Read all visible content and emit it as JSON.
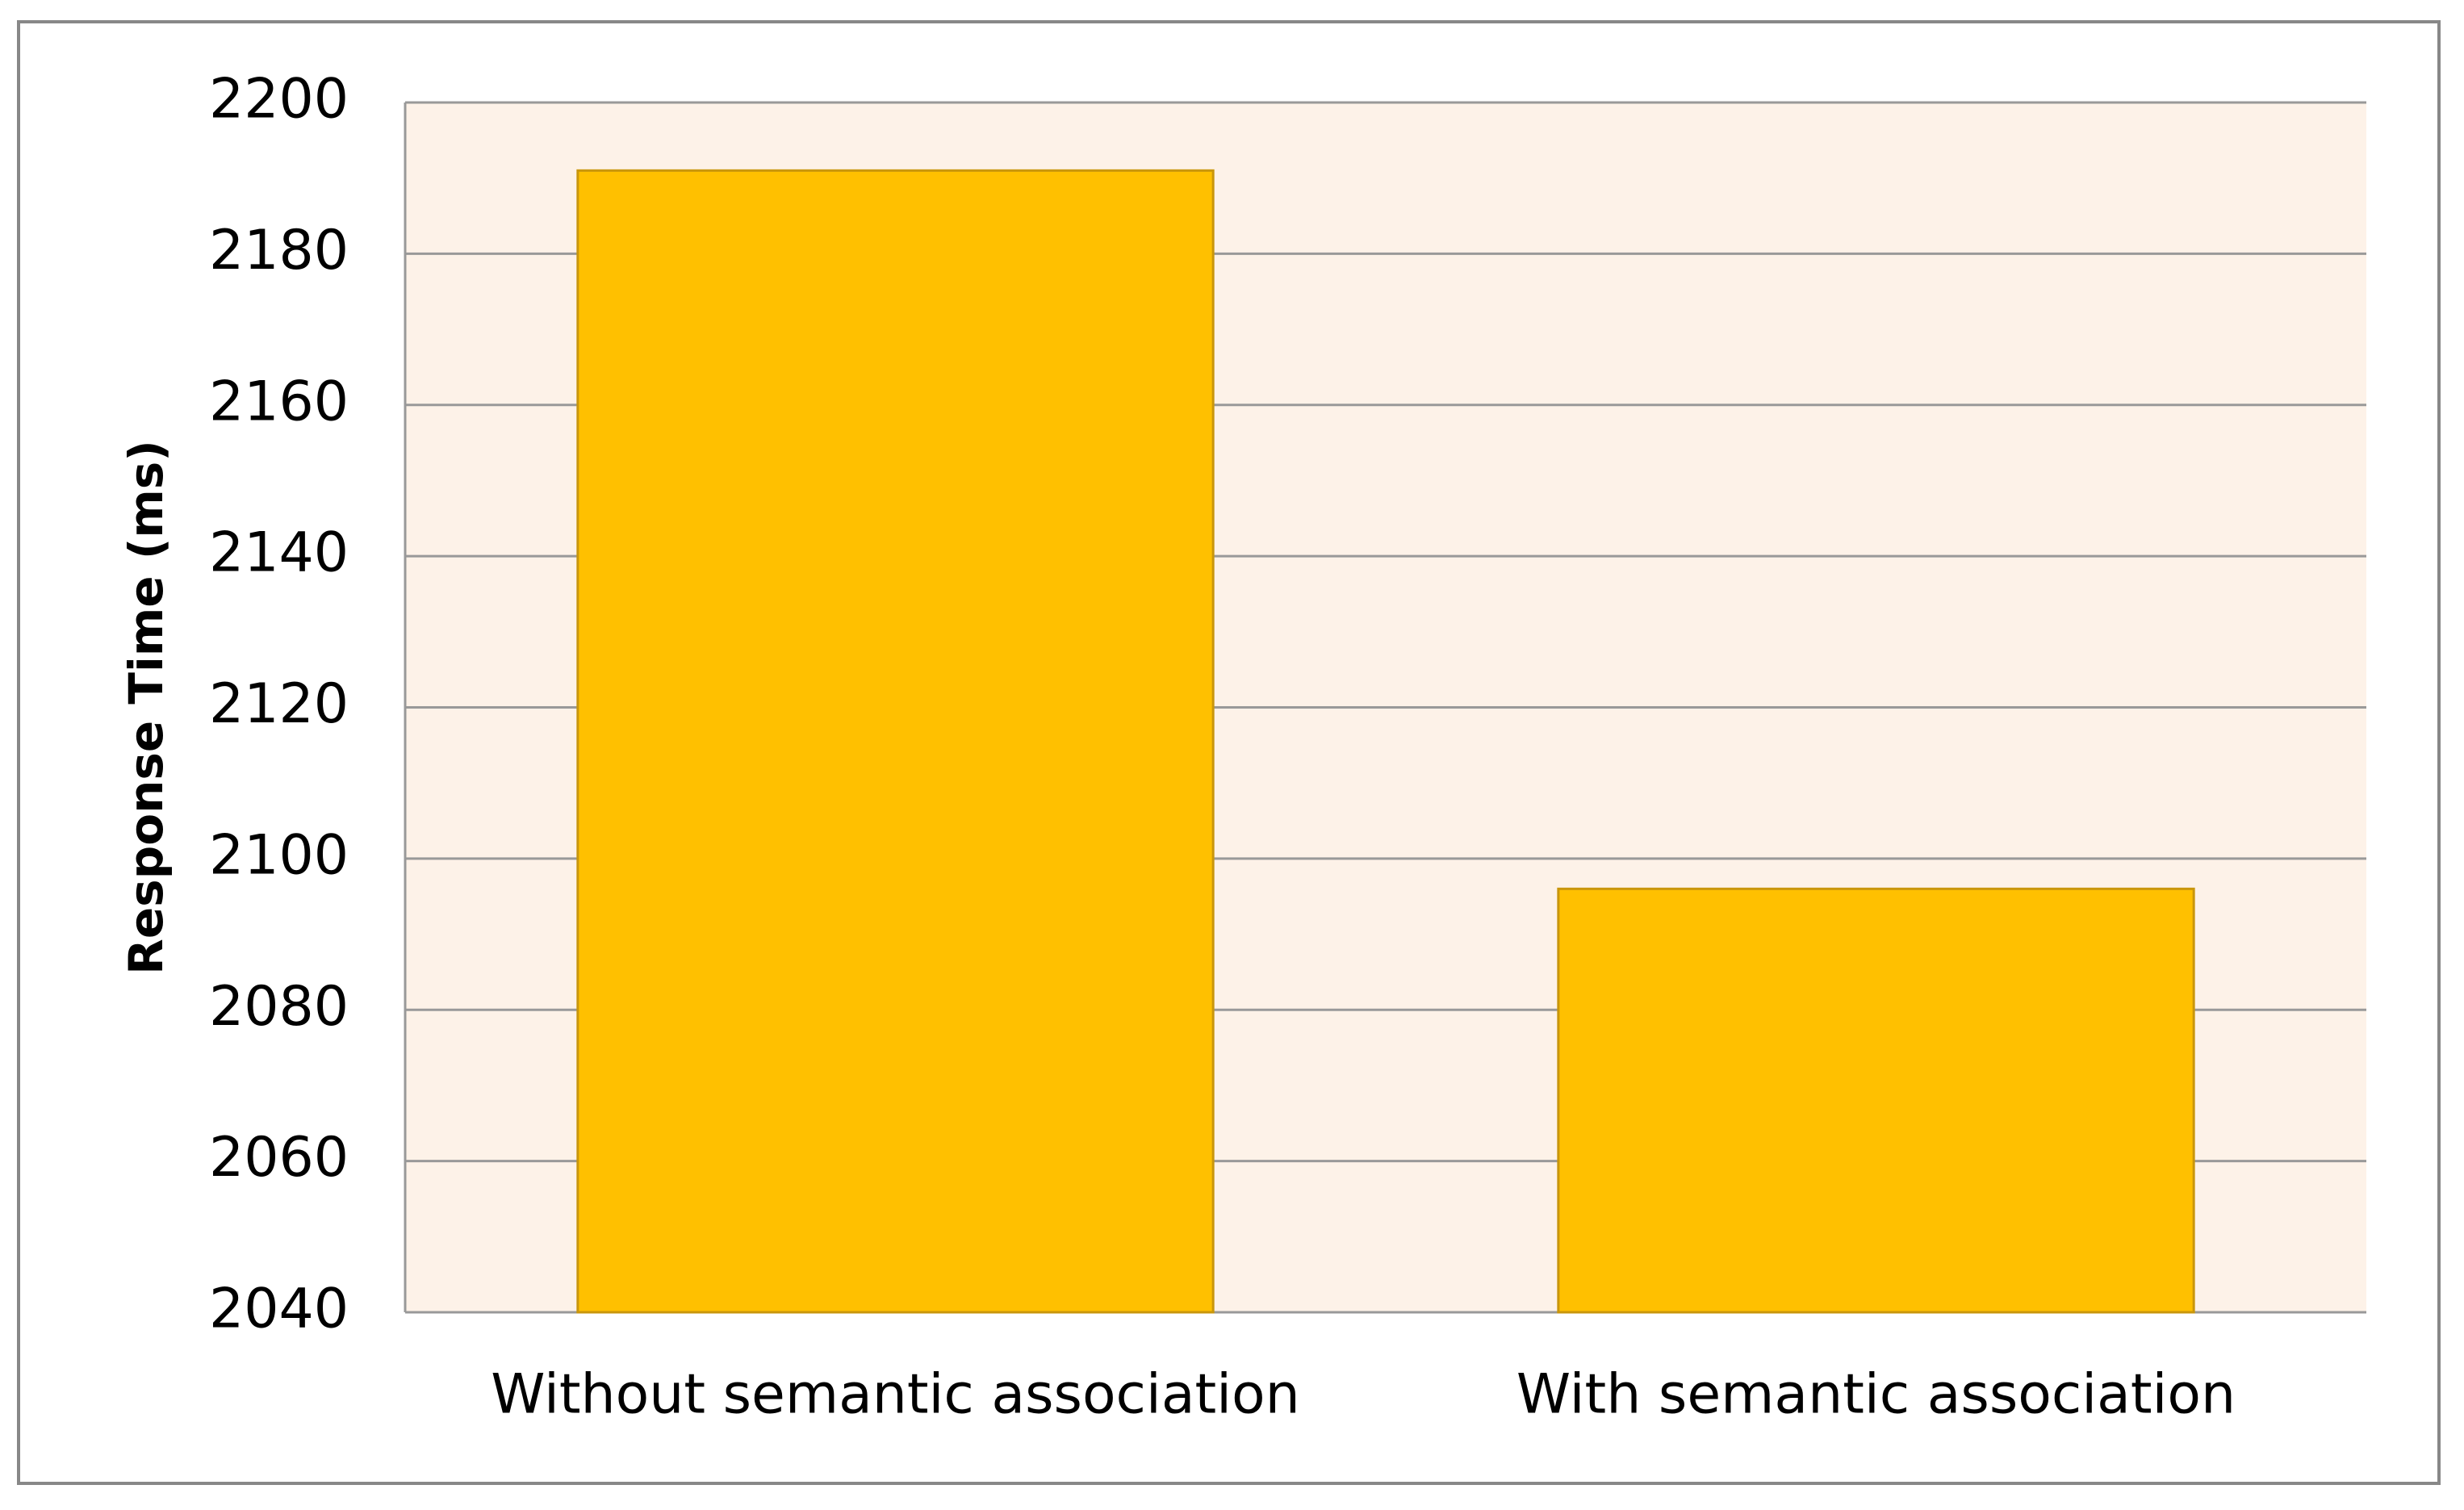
{
  "chart_data": {
    "type": "bar",
    "y_label": "Response Time (ms)",
    "categories": [
      "Without semantic association",
      "With semantic association"
    ],
    "values": [
      2191,
      2096
    ],
    "color": "#FFC000",
    "ylim": [
      2040,
      2200
    ],
    "yticks": [
      2040,
      2060,
      2080,
      2100,
      2120,
      2140,
      2160,
      2180,
      2200
    ],
    "grid": true
  }
}
